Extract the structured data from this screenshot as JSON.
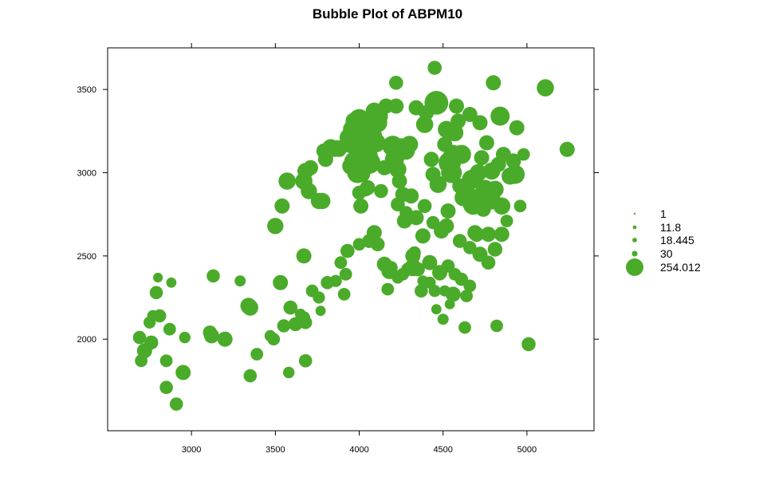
{
  "chart_data": {
    "type": "scatter",
    "title": "Bubble Plot of ABPM10",
    "xlabel": "",
    "ylabel": "",
    "xlim": [
      2500,
      5400
    ],
    "ylim": [
      1450,
      3750
    ],
    "x_ticks": [
      "3000",
      "3500",
      "4000",
      "4500",
      "5000"
    ],
    "y_ticks": [
      "2000",
      "2500",
      "3000",
      "3500"
    ],
    "grid": false,
    "color": "#4aab2a",
    "legend": {
      "placement": "right",
      "entries": [
        {
          "label": "1",
          "value": 1
        },
        {
          "label": "11.8",
          "value": 11.8
        },
        {
          "label": "18.445",
          "value": 18.445
        },
        {
          "label": "30",
          "value": 30
        },
        {
          "label": "254.012",
          "value": 254.012
        }
      ]
    },
    "points": [
      [
        2690,
        2010,
        22
      ],
      [
        2700,
        1870,
        20
      ],
      [
        2720,
        1930,
        30
      ],
      [
        2750,
        2100,
        18
      ],
      [
        2760,
        1980,
        25
      ],
      [
        2770,
        2140,
        16
      ],
      [
        2790,
        2280,
        22
      ],
      [
        2800,
        2370,
        11
      ],
      [
        2810,
        2140,
        22
      ],
      [
        2850,
        1870,
        20
      ],
      [
        2850,
        1710,
        22
      ],
      [
        2870,
        2060,
        20
      ],
      [
        2880,
        2340,
        12
      ],
      [
        2910,
        1610,
        22
      ],
      [
        2950,
        1800,
        30
      ],
      [
        2960,
        2010,
        16
      ],
      [
        3110,
        2040,
        25
      ],
      [
        3120,
        2020,
        30
      ],
      [
        3130,
        2380,
        22
      ],
      [
        3200,
        2000,
        30
      ],
      [
        3290,
        2350,
        15
      ],
      [
        3340,
        2200,
        35
      ],
      [
        3350,
        2190,
        35
      ],
      [
        3350,
        1780,
        22
      ],
      [
        3390,
        1910,
        20
      ],
      [
        3470,
        2020,
        16
      ],
      [
        3490,
        2000,
        20
      ],
      [
        3500,
        2680,
        35
      ],
      [
        3530,
        2340,
        30
      ],
      [
        3540,
        2800,
        30
      ],
      [
        3550,
        2080,
        22
      ],
      [
        3570,
        2950,
        40
      ],
      [
        3580,
        1800,
        16
      ],
      [
        3590,
        2190,
        25
      ],
      [
        3620,
        2090,
        25
      ],
      [
        3650,
        2150,
        15
      ],
      [
        3670,
        2130,
        20
      ],
      [
        3670,
        2500,
        30
      ],
      [
        3680,
        2100,
        22
      ],
      [
        3680,
        1870,
        22
      ],
      [
        3680,
        3010,
        35
      ],
      [
        3670,
        2950,
        40
      ],
      [
        3700,
        2890,
        35
      ],
      [
        3710,
        3030,
        30
      ],
      [
        3760,
        2830,
        35
      ],
      [
        3780,
        2830,
        35
      ],
      [
        3770,
        2170,
        12
      ],
      [
        3790,
        3130,
        30
      ],
      [
        3800,
        3080,
        30
      ],
      [
        3830,
        3150,
        40
      ],
      [
        3850,
        3140,
        30
      ],
      [
        3870,
        3150,
        30
      ],
      [
        3880,
        3140,
        30
      ],
      [
        3910,
        2270,
        20
      ],
      [
        3920,
        2390,
        20
      ],
      [
        3930,
        2530,
        25
      ],
      [
        3940,
        3210,
        50
      ],
      [
        3950,
        3180,
        60
      ],
      [
        3960,
        3260,
        50
      ],
      [
        3970,
        3310,
        40
      ],
      [
        3980,
        3060,
        80
      ],
      [
        3990,
        3000,
        60
      ],
      [
        4000,
        3320,
        60
      ],
      [
        4010,
        3250,
        70
      ],
      [
        4020,
        3200,
        70
      ],
      [
        4030,
        3280,
        60
      ],
      [
        4040,
        3100,
        80
      ],
      [
        4060,
        3060,
        70
      ],
      [
        4080,
        3220,
        50
      ],
      [
        4090,
        3370,
        40
      ],
      [
        4100,
        3180,
        50
      ],
      [
        4110,
        3300,
        50
      ],
      [
        4120,
        3340,
        40
      ],
      [
        4020,
        2990,
        30
      ],
      [
        4050,
        2910,
        30
      ],
      [
        4010,
        2800,
        30
      ],
      [
        4000,
        2880,
        25
      ],
      [
        4040,
        2900,
        25
      ],
      [
        3950,
        3040,
        40
      ],
      [
        4000,
        2570,
        20
      ],
      [
        4090,
        2640,
        30
      ],
      [
        4130,
        2890,
        25
      ],
      [
        4150,
        3030,
        30
      ],
      [
        4150,
        2450,
        30
      ],
      [
        4160,
        3400,
        30
      ],
      [
        4180,
        2410,
        35
      ],
      [
        4200,
        3160,
        60
      ],
      [
        4210,
        3080,
        50
      ],
      [
        4220,
        3400,
        30
      ],
      [
        4220,
        3540,
        25
      ],
      [
        4230,
        3020,
        40
      ],
      [
        4240,
        2950,
        30
      ],
      [
        4250,
        3150,
        50
      ],
      [
        4260,
        2870,
        30
      ],
      [
        4270,
        2710,
        30
      ],
      [
        4280,
        3130,
        40
      ],
      [
        4300,
        3170,
        40
      ],
      [
        4310,
        2860,
        30
      ],
      [
        4320,
        2430,
        40
      ],
      [
        4320,
        2500,
        30
      ],
      [
        4340,
        3390,
        30
      ],
      [
        4380,
        2620,
        30
      ],
      [
        4390,
        3290,
        40
      ],
      [
        4400,
        3360,
        30
      ],
      [
        4420,
        2460,
        30
      ],
      [
        4430,
        3080,
        30
      ],
      [
        4440,
        2990,
        30
      ],
      [
        4450,
        3630,
        25
      ],
      [
        4460,
        3420,
        80
      ],
      [
        4470,
        2930,
        40
      ],
      [
        4480,
        2400,
        30
      ],
      [
        4490,
        2650,
        30
      ],
      [
        4510,
        3170,
        30
      ],
      [
        4520,
        3260,
        40
      ],
      [
        4530,
        2770,
        30
      ],
      [
        4540,
        3060,
        70
      ],
      [
        4550,
        3000,
        60
      ],
      [
        4560,
        3110,
        50
      ],
      [
        4570,
        3240,
        40
      ],
      [
        4580,
        3400,
        30
      ],
      [
        4590,
        3310,
        30
      ],
      [
        4600,
        2920,
        30
      ],
      [
        4610,
        3110,
        50
      ],
      [
        4620,
        2850,
        40
      ],
      [
        4630,
        2070,
        20
      ],
      [
        4640,
        2260,
        20
      ],
      [
        4650,
        2870,
        40
      ],
      [
        4660,
        3350,
        30
      ],
      [
        4670,
        2960,
        50
      ],
      [
        4680,
        2810,
        60
      ],
      [
        4690,
        2640,
        30
      ],
      [
        4700,
        2630,
        30
      ],
      [
        4710,
        3000,
        40
      ],
      [
        4720,
        3300,
        30
      ],
      [
        4730,
        3090,
        30
      ],
      [
        4740,
        2780,
        30
      ],
      [
        4750,
        2900,
        50
      ],
      [
        4760,
        3180,
        30
      ],
      [
        4770,
        2630,
        30
      ],
      [
        4780,
        2840,
        60
      ],
      [
        4790,
        3010,
        40
      ],
      [
        4800,
        3540,
        30
      ],
      [
        4810,
        2900,
        40
      ],
      [
        4820,
        2080,
        20
      ],
      [
        4830,
        3050,
        30
      ],
      [
        4840,
        3340,
        50
      ],
      [
        4850,
        2800,
        40
      ],
      [
        4860,
        3110,
        30
      ],
      [
        4880,
        2710,
        20
      ],
      [
        4900,
        2980,
        40
      ],
      [
        4920,
        3070,
        30
      ],
      [
        4930,
        2990,
        50
      ],
      [
        4940,
        3270,
        30
      ],
      [
        4960,
        2800,
        20
      ],
      [
        4980,
        3110,
        20
      ],
      [
        5010,
        1970,
        25
      ],
      [
        5110,
        3510,
        40
      ],
      [
        5240,
        3140,
        30
      ],
      [
        4560,
        2270,
        30
      ],
      [
        4540,
        2210,
        12
      ],
      [
        4510,
        2290,
        15
      ],
      [
        4480,
        2390,
        20
      ],
      [
        4450,
        2290,
        18
      ],
      [
        4380,
        2350,
        15
      ],
      [
        4330,
        2520,
        20
      ],
      [
        4290,
        2420,
        22
      ],
      [
        4260,
        2390,
        20
      ],
      [
        4230,
        2370,
        18
      ],
      [
        4190,
        2430,
        22
      ],
      [
        4170,
        2300,
        20
      ],
      [
        4110,
        2570,
        25
      ],
      [
        4060,
        2590,
        25
      ],
      [
        4420,
        2340,
        18
      ],
      [
        4460,
        2180,
        12
      ],
      [
        4500,
        2120,
        15
      ],
      [
        4350,
        2420,
        25
      ],
      [
        4370,
        2290,
        22
      ],
      [
        3720,
        2290,
        20
      ],
      [
        3760,
        2250,
        18
      ],
      [
        3810,
        2340,
        22
      ],
      [
        4230,
        2810,
        25
      ],
      [
        4280,
        2760,
        22
      ],
      [
        4340,
        2730,
        30
      ],
      [
        4390,
        2800,
        25
      ],
      [
        4440,
        2700,
        22
      ],
      [
        4520,
        2680,
        30
      ],
      [
        4600,
        2590,
        25
      ],
      [
        4660,
        2550,
        22
      ],
      [
        4720,
        2510,
        30
      ],
      [
        4770,
        2460,
        25
      ],
      [
        4810,
        2540,
        28
      ],
      [
        4850,
        2630,
        30
      ],
      [
        4530,
        2440,
        22
      ],
      [
        4570,
        2390,
        20
      ],
      [
        4610,
        2360,
        22
      ],
      [
        4660,
        2320,
        20
      ],
      [
        3890,
        2460,
        20
      ],
      [
        3860,
        2350,
        18
      ]
    ]
  }
}
